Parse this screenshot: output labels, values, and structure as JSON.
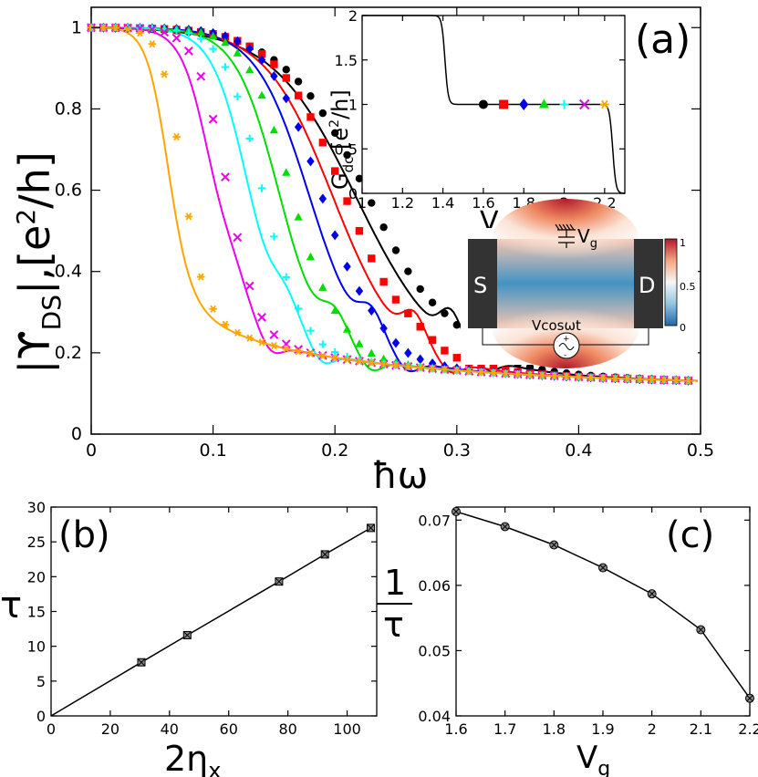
{
  "colors": {
    "black": "#000000",
    "red": "#ff0000",
    "blue": "#0000ee",
    "green": "#00dd00",
    "cyan": "#00ffff",
    "magenta": "#ee00ee",
    "orange": "#ffa500"
  },
  "chart_data": [
    {
      "id": "a",
      "type": "line",
      "panel_label": "(a)",
      "xlabel": "ħω",
      "ylabel": "|ϒDS|,[e²/h]",
      "ylabel_parts": {
        "a": "|ϒ",
        "b": "DS",
        "c": "|,[e",
        "d": "2",
        "e": "/h]"
      },
      "xlim": [
        0,
        0.5
      ],
      "ylim": [
        0,
        1.05
      ],
      "xticks": [
        "0",
        "0.1",
        "0.2",
        "0.3",
        "0.4",
        "0.5"
      ],
      "yticks": [
        "0",
        "0.2",
        "0.4",
        "0.6",
        "0.8",
        "1"
      ],
      "series": [
        {
          "name": "Vg=1.6",
          "color": "#000000",
          "marker": "circle",
          "w0": 0.22,
          "s": 0.035,
          "bump": 0.3,
          "pkx": 0.295
        },
        {
          "name": "Vg=1.7",
          "color": "#ff0000",
          "marker": "square",
          "w0": 0.2,
          "s": 0.028,
          "bump": 0.26,
          "pkx": 0.265
        },
        {
          "name": "Vg=1.8",
          "color": "#0000ee",
          "marker": "diamond",
          "w0": 0.18,
          "s": 0.022,
          "bump": 0.235,
          "pkx": 0.23
        },
        {
          "name": "Vg=1.9",
          "color": "#00dd00",
          "marker": "triangle",
          "w0": 0.155,
          "s": 0.018,
          "bump": 0.215,
          "pkx": 0.2
        },
        {
          "name": "Vg=2.0",
          "color": "#00ffff",
          "marker": "plus",
          "w0": 0.13,
          "s": 0.015,
          "bump": 0.195,
          "pkx": 0.16
        },
        {
          "name": "Vg=2.1",
          "color": "#ee00ee",
          "marker": "x",
          "w0": 0.1,
          "s": 0.012,
          "bump": 0.17,
          "pkx": 0.118
        },
        {
          "name": "Vg=2.2",
          "color": "#ffa500",
          "marker": "asterisk",
          "w0": 0.063,
          "s": 0.009,
          "bump": 0,
          "pkx": 0.07
        }
      ]
    },
    {
      "id": "a-inset",
      "type": "line",
      "xlabel": "Vg",
      "ylabel": "Gdc,[e²/h]",
      "xlabel_parts": {
        "a": "V",
        "b": "g"
      },
      "ylabel_parts": {
        "a": "G",
        "b": "dc",
        "c": ",[e",
        "d": "2",
        "e": "/h]"
      },
      "xlim": [
        1,
        2.3
      ],
      "ylim": [
        0,
        2
      ],
      "xticks": [
        "1",
        "1.2",
        "1.4",
        "1.6",
        "1.8",
        "2",
        "2.2"
      ],
      "yticks": [
        "0",
        "0.5",
        "1",
        "1.5",
        "2"
      ],
      "curve": {
        "step1_center": 1.41,
        "step2_center": 2.24
      },
      "points": [
        {
          "x": 1.6,
          "y": 1,
          "marker": "circle",
          "color": "#000000"
        },
        {
          "x": 1.7,
          "y": 1,
          "marker": "square",
          "color": "#ff0000"
        },
        {
          "x": 1.8,
          "y": 1,
          "marker": "diamond",
          "color": "#0000ee"
        },
        {
          "x": 1.9,
          "y": 1,
          "marker": "triangle",
          "color": "#00dd00"
        },
        {
          "x": 2.0,
          "y": 1,
          "marker": "plus",
          "color": "#00ffff"
        },
        {
          "x": 2.1,
          "y": 1,
          "marker": "x",
          "color": "#ee00ee"
        },
        {
          "x": 2.2,
          "y": 1,
          "marker": "asterisk",
          "color": "#ffa500"
        }
      ]
    },
    {
      "id": "b",
      "type": "line",
      "panel_label": "(b)",
      "xlabel": "2ηx",
      "ylabel": "τ",
      "xlabel_parts": {
        "a": "2η",
        "b": "x"
      },
      "xlim": [
        0,
        110
      ],
      "ylim": [
        0,
        30
      ],
      "xticks": [
        "0",
        "20",
        "40",
        "60",
        "80",
        "100"
      ],
      "yticks": [
        "0",
        "5",
        "10",
        "15",
        "20",
        "25",
        "30"
      ],
      "x": [
        0,
        30.5,
        46,
        77,
        92.5,
        108
      ],
      "y": [
        0,
        7.7,
        11.6,
        19.3,
        23.2,
        27.0
      ]
    },
    {
      "id": "c",
      "type": "line",
      "panel_label": "(c)",
      "xlabel": "Vg",
      "ylabel": "1/τ",
      "xlabel_parts": {
        "a": "V",
        "b": "g"
      },
      "ylabel_parts": {
        "num": "1",
        "den": "τ"
      },
      "xlim": [
        1.6,
        2.2
      ],
      "ylim": [
        0.04,
        0.072
      ],
      "xticks": [
        "1.6",
        "1.7",
        "1.8",
        "1.9",
        "2",
        "2.1",
        "2.2"
      ],
      "yticks": [
        "0.04",
        "0.05",
        "0.06",
        "0.07"
      ],
      "x": [
        1.6,
        1.7,
        1.8,
        1.9,
        2.0,
        2.1,
        2.2
      ],
      "y": [
        0.0713,
        0.069,
        0.0662,
        0.0627,
        0.0587,
        0.0532,
        0.0427
      ]
    }
  ],
  "schematic": {
    "source_label": "S",
    "drain_label": "D",
    "gate_label": "V",
    "gate_sub": "g",
    "ac_label": "Vcosωt",
    "plus_sign": "+",
    "minus_sign": "-",
    "colorbar_ticks": [
      "1",
      "0.5",
      "0"
    ]
  }
}
